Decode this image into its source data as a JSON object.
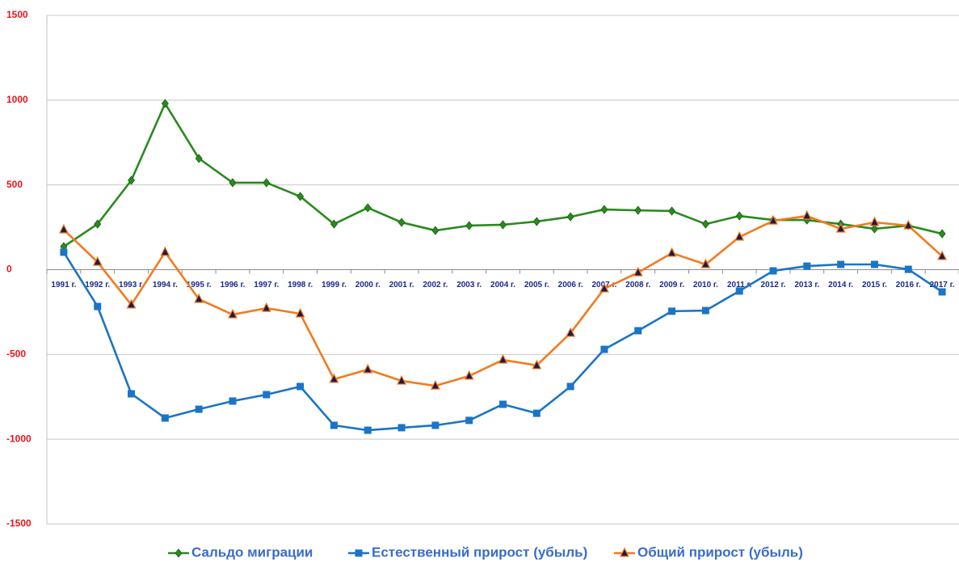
{
  "chart_data": {
    "type": "line",
    "categories": [
      "1991 г.",
      "1992 г.",
      "1993 г.",
      "1994 г.",
      "1995 г.",
      "1996 г.",
      "1997 г.",
      "1998 г.",
      "1999 г.",
      "2000 г.",
      "2001 г.",
      "2002 г.",
      "2003 г.",
      "2004 г.",
      "2005 г.",
      "2006 г.",
      "2007 г.",
      "2008 г.",
      "2009 г.",
      "2010 г.",
      "2011 г.",
      "2012 г.",
      "2013 г.",
      "2014 г.",
      "2015 г.",
      "2016 г.",
      "2017 г."
    ],
    "series": [
      {
        "name": "Сальдо миграции",
        "color": "#2a8a1e",
        "marker": "diamond",
        "values": [
          136,
          269,
          527,
          980,
          656,
          513,
          513,
          432,
          269,
          365,
          279,
          231,
          260,
          265,
          284,
          312,
          355,
          350,
          346,
          269,
          317,
          293,
          293,
          269,
          241,
          260,
          212
        ]
      },
      {
        "name": "Естественный прирост (убыль)",
        "color": "#1b74c6",
        "marker": "square",
        "values": [
          103,
          -217,
          -732,
          -875,
          -823,
          -775,
          -737,
          -689,
          -918,
          -947,
          -932,
          -918,
          -889,
          -794,
          -847,
          -689,
          -470,
          -360,
          -245,
          -241,
          -126,
          -7,
          21,
          31,
          31,
          2,
          -131
        ]
      },
      {
        "name": "Общий прирост (убыль)",
        "color": "#f27a1e",
        "marker": "triangle",
        "values": [
          236,
          45,
          -207,
          103,
          -174,
          -265,
          -227,
          -260,
          -646,
          -589,
          -656,
          -685,
          -627,
          -532,
          -565,
          -374,
          -112,
          -17,
          98,
          31,
          193,
          288,
          317,
          241,
          279,
          260,
          79
        ]
      }
    ],
    "ylim": [
      -1500,
      1500
    ],
    "yticks": [
      -1500,
      -1000,
      -500,
      0,
      500,
      1000,
      1500
    ],
    "grid": true,
    "legend": "bottom"
  }
}
